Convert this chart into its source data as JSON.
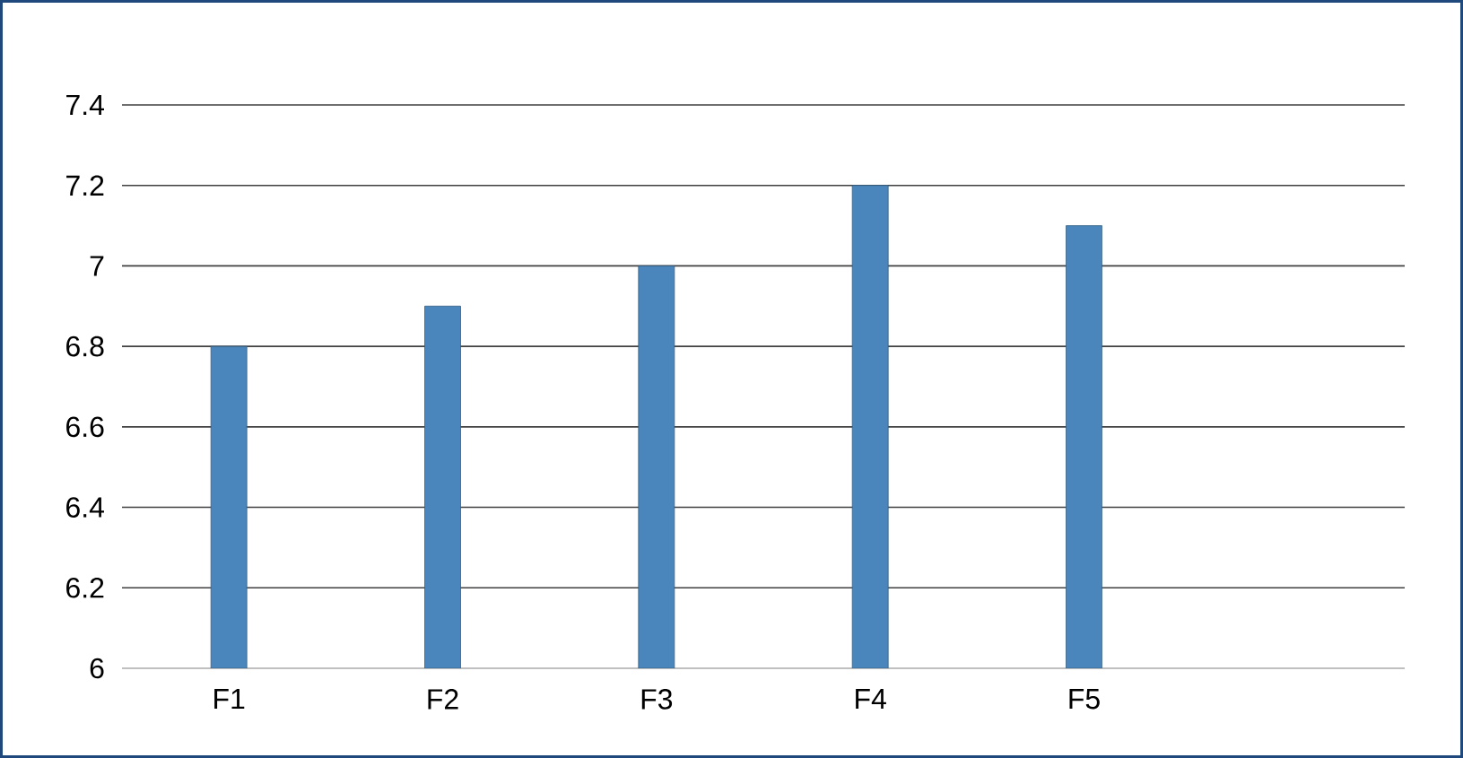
{
  "chart_data": {
    "type": "bar",
    "categories": [
      "F1",
      "F2",
      "F3",
      "F4",
      "F5",
      null
    ],
    "values": [
      6.8,
      6.9,
      7.0,
      7.2,
      7.1,
      null
    ],
    "color": "#4a86bb",
    "ylim": [
      6,
      7.4
    ],
    "yticks": [
      6,
      6.2,
      6.4,
      6.6,
      6.8,
      7,
      7.2,
      7.4
    ],
    "grid": "y"
  }
}
